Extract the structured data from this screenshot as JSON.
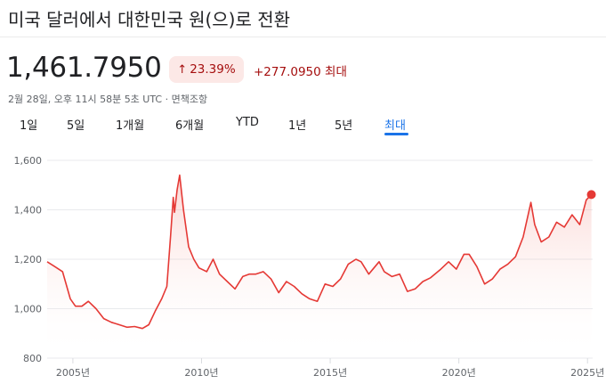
{
  "header": {
    "title": "미국 달러에서 대한민국 원(으)로 전환"
  },
  "quote": {
    "price": "1,461.7950",
    "percent_change": "23.39%",
    "arrow": "↑",
    "absolute_change": "+277.0950",
    "period_label": "최대",
    "meta": "2월 28일, 오후 11시 58분 5초 UTC · 면책조항"
  },
  "tabs": [
    {
      "label": "1일"
    },
    {
      "label": "5일"
    },
    {
      "label": "1개월"
    },
    {
      "label": "6개월"
    },
    {
      "label": "YTD"
    },
    {
      "label": "1년"
    },
    {
      "label": "5년"
    },
    {
      "label": "최대",
      "active": true
    }
  ],
  "colors": {
    "line": "#e53935",
    "fill": "#fbe4e2",
    "accent": "#1a73e8",
    "negative": "#a50e0e"
  },
  "chart_data": {
    "type": "area",
    "title": "",
    "xlabel": "",
    "ylabel": "",
    "xlim": [
      2004.0,
      2025.2
    ],
    "ylim": [
      800,
      1600
    ],
    "yticks": [
      800,
      1000,
      1200,
      1400,
      1600
    ],
    "ytick_labels": [
      "800",
      "1,000",
      "1,200",
      "1,400",
      "1,600"
    ],
    "xticks": [
      2005,
      2010,
      2015,
      2020,
      2025
    ],
    "xtick_labels": [
      "2005년",
      "2010년",
      "2015년",
      "2020년",
      "2025년"
    ],
    "grid": true,
    "series": [
      {
        "x": [
          2004.0,
          2004.3,
          2004.6,
          2004.9,
          2005.1,
          2005.35,
          2005.6,
          2005.9,
          2006.2,
          2006.5,
          2006.8,
          2007.1,
          2007.4,
          2007.7,
          2007.95,
          2008.2,
          2008.45,
          2008.65,
          2008.8,
          2008.9,
          2008.95,
          2009.05,
          2009.15,
          2009.3,
          2009.5,
          2009.7,
          2009.9,
          2010.2,
          2010.45,
          2010.7,
          2011.0,
          2011.3,
          2011.6,
          2011.85,
          2012.1,
          2012.4,
          2012.7,
          2013.0,
          2013.3,
          2013.6,
          2013.9,
          2014.2,
          2014.5,
          2014.8,
          2015.1,
          2015.4,
          2015.7,
          2016.0,
          2016.2,
          2016.5,
          2016.9,
          2017.1,
          2017.4,
          2017.7,
          2018.0,
          2018.3,
          2018.6,
          2018.9,
          2019.3,
          2019.6,
          2019.9,
          2020.2,
          2020.4,
          2020.7,
          2021.0,
          2021.3,
          2021.6,
          2021.9,
          2022.2,
          2022.5,
          2022.8,
          2022.95,
          2023.2,
          2023.5,
          2023.8,
          2024.1,
          2024.4,
          2024.7,
          2024.95,
          2025.15
        ],
        "y": [
          1190,
          1170,
          1150,
          1040,
          1010,
          1010,
          1030,
          1000,
          960,
          945,
          935,
          925,
          928,
          920,
          935,
          990,
          1040,
          1090,
          1300,
          1450,
          1390,
          1480,
          1540,
          1400,
          1250,
          1200,
          1165,
          1150,
          1200,
          1140,
          1110,
          1080,
          1130,
          1140,
          1140,
          1150,
          1120,
          1065,
          1110,
          1090,
          1060,
          1040,
          1030,
          1100,
          1090,
          1120,
          1180,
          1200,
          1190,
          1140,
          1190,
          1150,
          1130,
          1140,
          1070,
          1080,
          1110,
          1125,
          1160,
          1190,
          1160,
          1220,
          1220,
          1170,
          1100,
          1120,
          1160,
          1180,
          1210,
          1290,
          1430,
          1340,
          1270,
          1290,
          1350,
          1330,
          1380,
          1340,
          1440,
          1462
        ]
      }
    ],
    "last_value": 1461.795
  }
}
